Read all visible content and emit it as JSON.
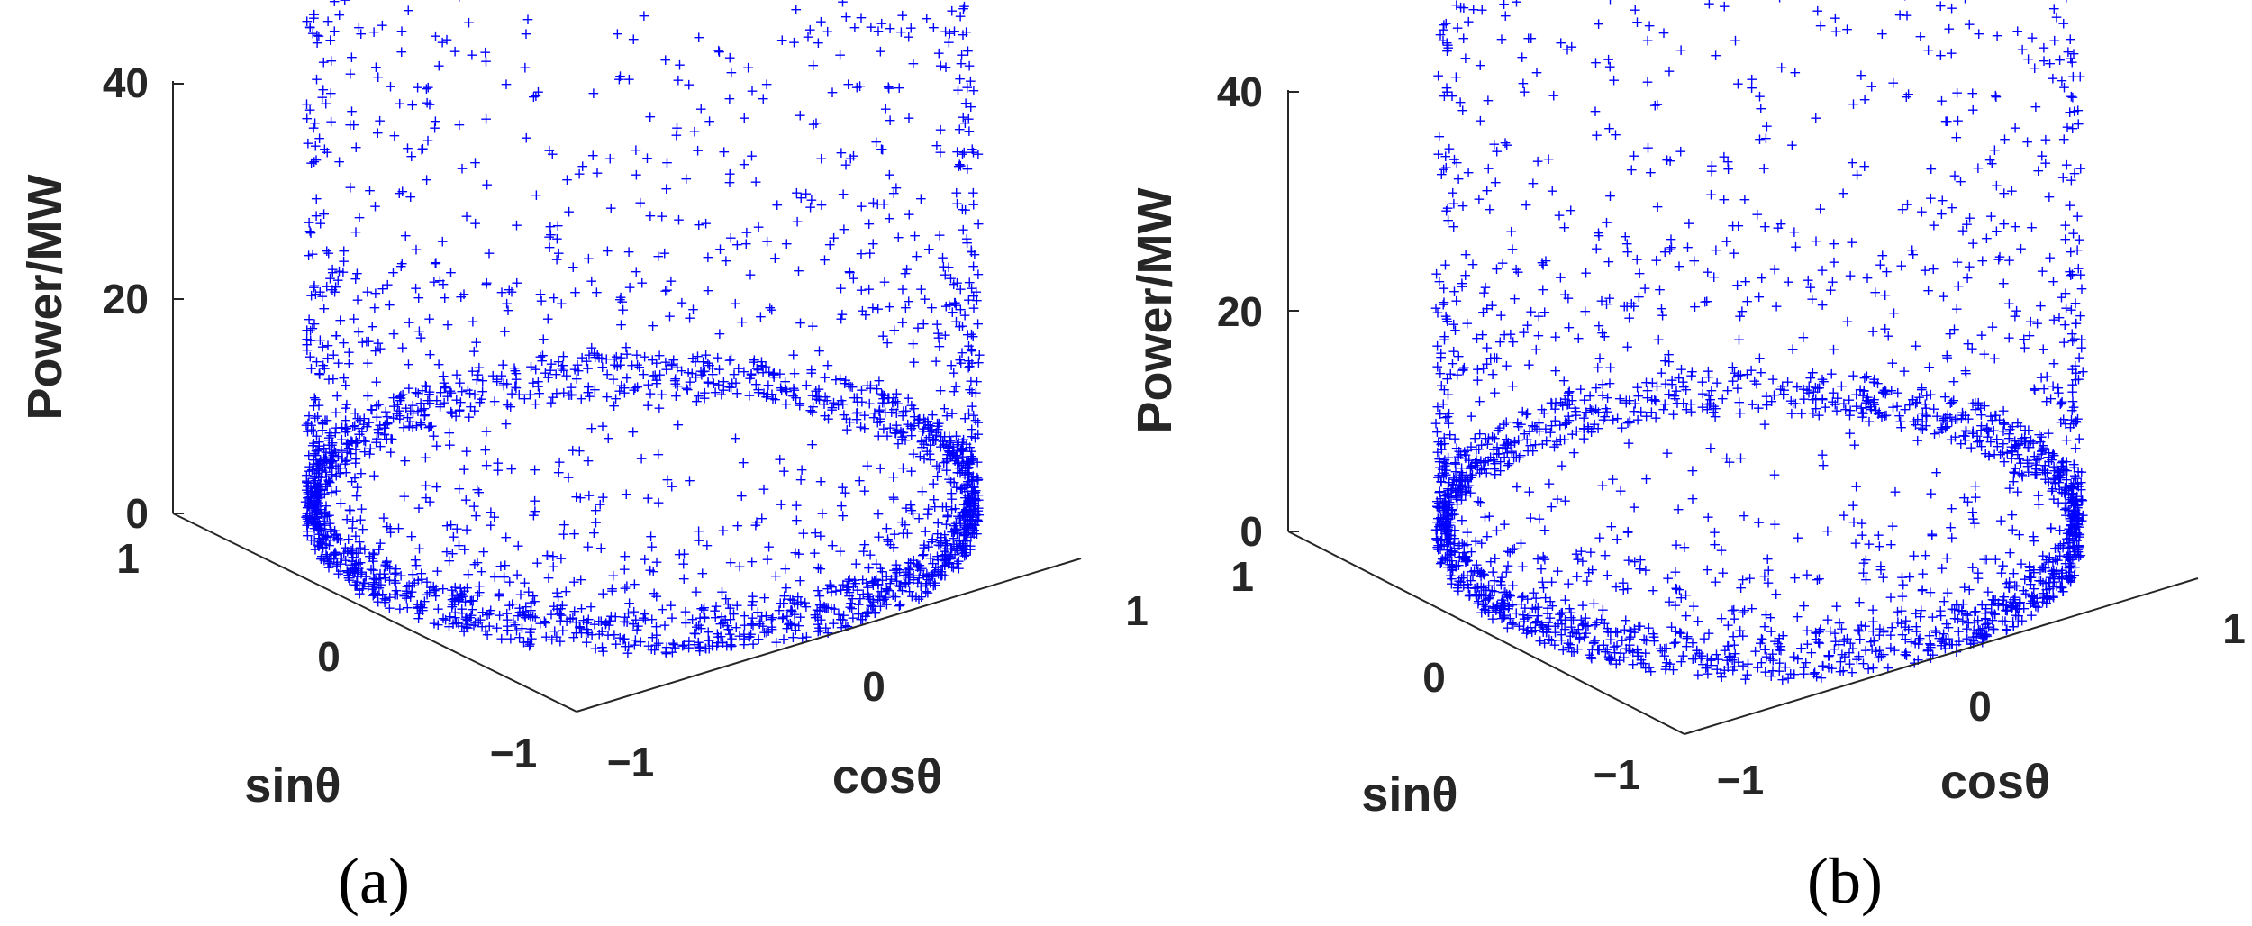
{
  "figure": {
    "colors": {
      "marker": "#0000ff",
      "axis": "#262626"
    },
    "marker_symbol": "+"
  },
  "chart_data": [
    {
      "type": "scatter",
      "dimensions": 3,
      "panel_label": "(a)",
      "xlabel": "cosθ",
      "ylabel": "sinθ",
      "zlabel": "Power/MW",
      "xlim": [
        -1,
        1
      ],
      "ylim": [
        -1,
        1
      ],
      "zlim": [
        0,
        45
      ],
      "x_ticks": [
        "−1",
        "0",
        "1"
      ],
      "y_ticks": [
        "−1",
        "0",
        "1"
      ],
      "z_ticks": [
        "0",
        "20",
        "40"
      ],
      "z_range_observed": [
        0,
        45
      ],
      "description_points": "points lie on unit circle (cos²θ+sin²θ=1), power 0–45 MW; dense high-power band for sinθ>0"
    },
    {
      "type": "scatter",
      "dimensions": 3,
      "panel_label": "(b)",
      "xlabel": "cosθ",
      "ylabel": "sinθ",
      "zlabel": "Power/MW",
      "xlim": [
        -1,
        1
      ],
      "ylim": [
        -1,
        1
      ],
      "zlim": [
        0,
        45
      ],
      "x_ticks": [
        "−1",
        "0",
        "1"
      ],
      "y_ticks": [
        "−1",
        "0",
        "1"
      ],
      "z_ticks": [
        "0",
        "20",
        "40"
      ],
      "z_range_observed": [
        0,
        45
      ],
      "description_points": "points lie on unit circle, power 0–45 MW; more evenly spread around the circle"
    }
  ]
}
